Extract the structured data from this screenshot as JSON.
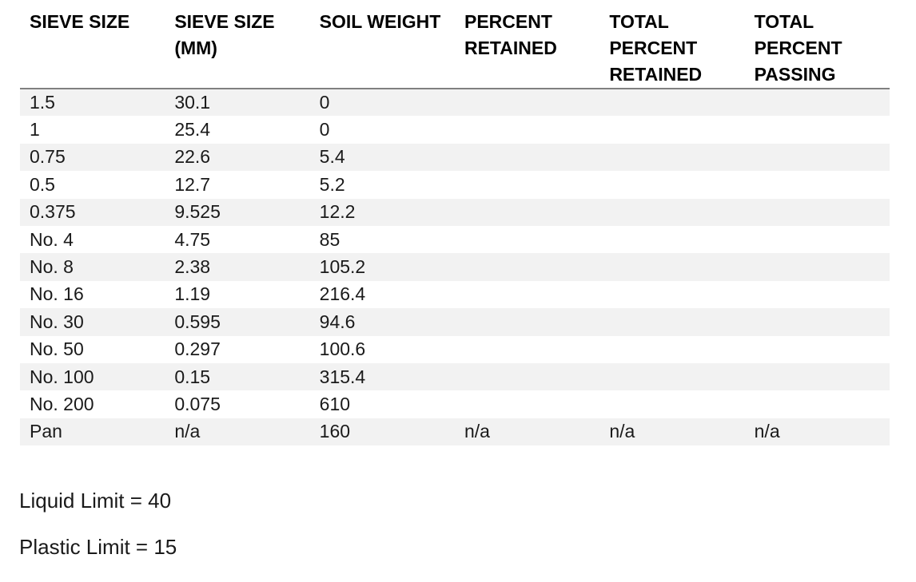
{
  "table": {
    "columns": [
      "SIEVE SIZE",
      "SIEVE SIZE\n(MM)",
      "SOIL WEIGHT",
      "PERCENT\nRETAINED",
      "TOTAL\nPERCENT\nRETAINED",
      "TOTAL\nPERCENT\nPASSING"
    ],
    "rows": [
      [
        "1.5",
        "30.1",
        "0",
        "",
        "",
        ""
      ],
      [
        "1",
        "25.4",
        "0",
        "",
        "",
        ""
      ],
      [
        "0.75",
        "22.6",
        "5.4",
        "",
        "",
        ""
      ],
      [
        "0.5",
        "12.7",
        "5.2",
        "",
        "",
        ""
      ],
      [
        "0.375",
        "9.525",
        "12.2",
        "",
        "",
        ""
      ],
      [
        "No. 4",
        "4.75",
        "85",
        "",
        "",
        ""
      ],
      [
        "No. 8",
        "2.38",
        "105.2",
        "",
        "",
        ""
      ],
      [
        "No. 16",
        "1.19",
        "216.4",
        "",
        "",
        ""
      ],
      [
        "No. 30",
        "0.595",
        "94.6",
        "",
        "",
        ""
      ],
      [
        "No. 50",
        "0.297",
        "100.6",
        "",
        "",
        ""
      ],
      [
        "No. 100",
        "0.15",
        "315.4",
        "",
        "",
        ""
      ],
      [
        "No. 200",
        "0.075",
        "610",
        "",
        "",
        ""
      ],
      [
        "Pan",
        "n/a",
        "160",
        "n/a",
        "n/a",
        "n/a"
      ]
    ]
  },
  "notes": {
    "liquid_limit": "Liquid Limit = 40",
    "plastic_limit": "Plastic Limit = 15"
  },
  "colors": {
    "row_stripe": "#F2F2F2",
    "header_rule": "#808080",
    "text": "#1A1A1A"
  }
}
